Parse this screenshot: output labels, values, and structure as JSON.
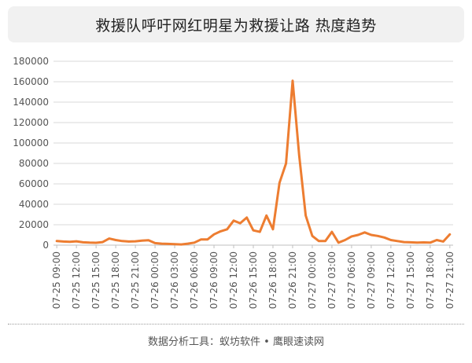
{
  "header": {
    "title": "救援队呼吁网红明星为救援让路 热度趋势"
  },
  "footer": {
    "source": "数据分析工具：蚁坊软件 • 鹰眼速读网"
  },
  "colors": {
    "line": "#ED7D31",
    "grid": "#d9d9d9",
    "axis": "#555555"
  },
  "chart_data": {
    "type": "line",
    "title": "救援队呼吁网红明星为救援让路 热度趋势",
    "xlabel": "",
    "ylabel": "",
    "ylim": [
      0,
      180000
    ],
    "yticks": [
      0,
      20000,
      40000,
      60000,
      80000,
      100000,
      120000,
      140000,
      160000,
      180000
    ],
    "grid": true,
    "legend": "none",
    "x_tick_labels": [
      "07-25 09:00",
      "07-25 12:00",
      "07-25 15:00",
      "07-25 18:00",
      "07-25 21:00",
      "07-26 00:00",
      "07-26 03:00",
      "07-26 06:00",
      "07-26 09:00",
      "07-26 12:00",
      "07-26 15:00",
      "07-26 18:00",
      "07-26 21:00",
      "07-27 00:00",
      "07-27 03:00",
      "07-27 06:00",
      "07-27 09:00",
      "07-27 12:00",
      "07-27 15:00",
      "07-27 18:00",
      "07-27 21:00"
    ],
    "series": [
      {
        "values": [
          4000,
          3500,
          3200,
          3800,
          2800,
          2500,
          2300,
          3000,
          6500,
          5000,
          4000,
          3500,
          3800,
          4500,
          4800,
          2000,
          1500,
          1200,
          900,
          700,
          1500,
          2500,
          5500,
          5500,
          10500,
          13500,
          15500,
          24000,
          21500,
          27000,
          14500,
          13000,
          29000,
          15500,
          61000,
          80000,
          161000,
          88000,
          29000,
          9000,
          4000,
          4000,
          13000,
          2500,
          5000,
          8500,
          10000,
          12500,
          10000,
          9000,
          7500,
          5000,
          4000,
          3000,
          2800,
          2500,
          2700,
          2500,
          5000,
          3500,
          10500
        ]
      }
    ]
  }
}
